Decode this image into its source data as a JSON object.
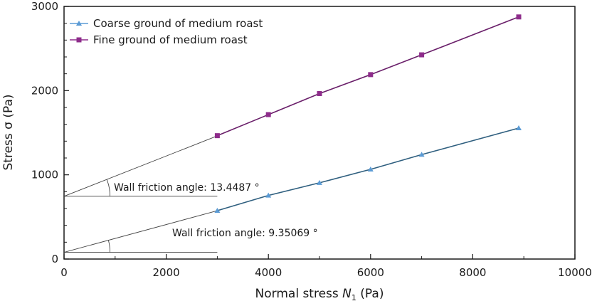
{
  "chart_data": {
    "type": "line",
    "title": "",
    "xlabel_prefix": "Normal stress ",
    "xlabel_symbol": "N",
    "xlabel_subscript": "1",
    "xlabel_suffix": " (Pa)",
    "ylabel": "Stress σ (Pa)",
    "xlim": [
      0,
      10000
    ],
    "ylim": [
      0,
      3000
    ],
    "x_ticks": [
      0,
      2000,
      4000,
      6000,
      8000,
      10000
    ],
    "x_tick_labels": [
      "0",
      "2000",
      "4000",
      "6000",
      "8000",
      "10000"
    ],
    "y_ticks": [
      0,
      1000,
      2000,
      3000
    ],
    "y_tick_labels": [
      "0",
      "1000",
      "2000",
      "3000"
    ],
    "legend_position": "top-left",
    "series": [
      {
        "name": "Coarse ground of medium roast",
        "color": "#5b9bd5",
        "fit_color": "#2f5f7f",
        "marker": "triangle",
        "x": [
          3000,
          4000,
          5000,
          6000,
          7000,
          8900
        ],
        "y": [
          575,
          755,
          905,
          1065,
          1240,
          1555
        ],
        "fit_intercept": 80,
        "fit_slope": 0.1647,
        "angle_label": "Wall friction angle: 9.35069 °"
      },
      {
        "name": "Fine ground of medium roast",
        "color": "#8e2c8b",
        "fit_color": "#6a1f6a",
        "marker": "square",
        "x": [
          3000,
          4000,
          5000,
          6000,
          7000,
          8900
        ],
        "y": [
          1465,
          1715,
          1965,
          2190,
          2425,
          2875
        ],
        "fit_intercept": 745,
        "fit_slope": 0.2391,
        "angle_label": "Wall friction angle: 13.4487 °"
      }
    ]
  }
}
